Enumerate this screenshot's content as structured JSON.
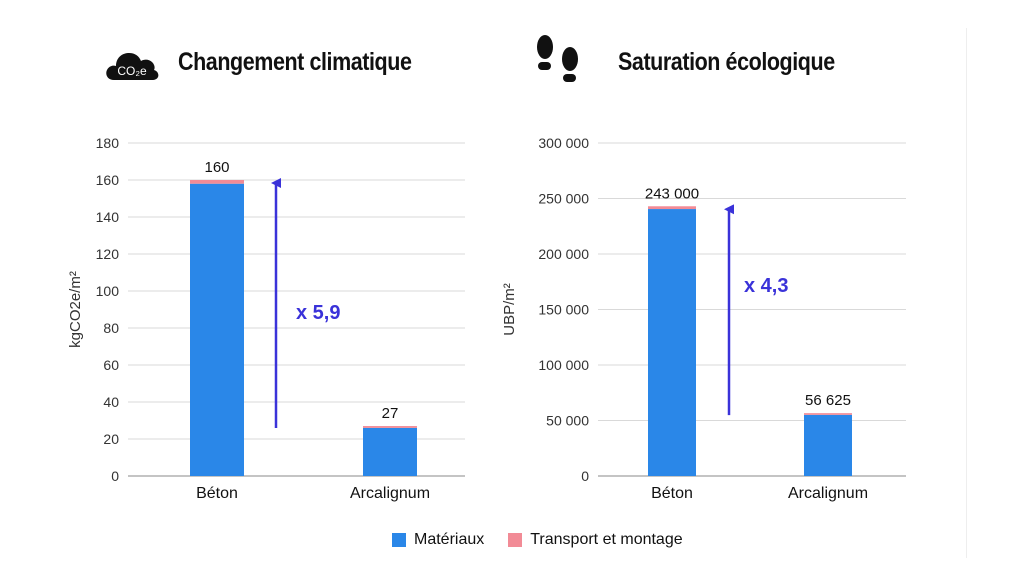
{
  "colors": {
    "materials": "#2a87e8",
    "transport": "#f28b96",
    "arrow": "#3a32d9",
    "grid": "#d9d9d9",
    "text": "#111111"
  },
  "panels": [
    {
      "title": "Changement climatique",
      "icon": "co2-cloud-icon",
      "icon_text": "CO₂e"
    },
    {
      "title": "Saturation écologique",
      "icon": "footprints-icon"
    }
  ],
  "legend": [
    {
      "label": "Matériaux",
      "color": "#2a87e8"
    },
    {
      "label": "Transport et montage",
      "color": "#f28b96"
    }
  ],
  "chart_data": [
    {
      "type": "bar",
      "stacked": true,
      "title": "Changement climatique",
      "ylabel": "kgCO2e/m²",
      "categories": [
        "Béton",
        "Arcalignum"
      ],
      "series": [
        {
          "name": "Matériaux",
          "values": [
            158,
            26
          ]
        },
        {
          "name": "Transport et montage",
          "values": [
            2,
            1
          ]
        }
      ],
      "totals": [
        160,
        27
      ],
      "total_labels": [
        "160",
        "27"
      ],
      "ylim": [
        0,
        180
      ],
      "yticks": [
        0,
        20,
        40,
        60,
        80,
        100,
        120,
        140,
        160,
        180
      ],
      "ytick_labels": [
        "0",
        "20",
        "40",
        "60",
        "80",
        "100",
        "120",
        "140",
        "160",
        "180"
      ],
      "grid": true,
      "annotation": {
        "text": "x 5,9",
        "arrow_from": 27,
        "arrow_to": 160
      }
    },
    {
      "type": "bar",
      "stacked": true,
      "title": "Saturation écologique",
      "ylabel": "UBP/m²",
      "categories": [
        "Béton",
        "Arcalignum"
      ],
      "series": [
        {
          "name": "Matériaux",
          "values": [
            240500,
            55100
          ]
        },
        {
          "name": "Transport et montage",
          "values": [
            2500,
            1525
          ]
        }
      ],
      "totals": [
        243000,
        56625
      ],
      "total_labels": [
        "243 000",
        "56 625"
      ],
      "ylim": [
        0,
        300000
      ],
      "yticks": [
        0,
        50000,
        100000,
        150000,
        200000,
        250000,
        300000
      ],
      "ytick_labels": [
        "0",
        "50 000",
        "100 000",
        "150 000",
        "200 000",
        "250 000",
        "300 000"
      ],
      "grid": true,
      "annotation": {
        "text": "x 4,3",
        "arrow_from": 56625,
        "arrow_to": 243000
      }
    }
  ]
}
